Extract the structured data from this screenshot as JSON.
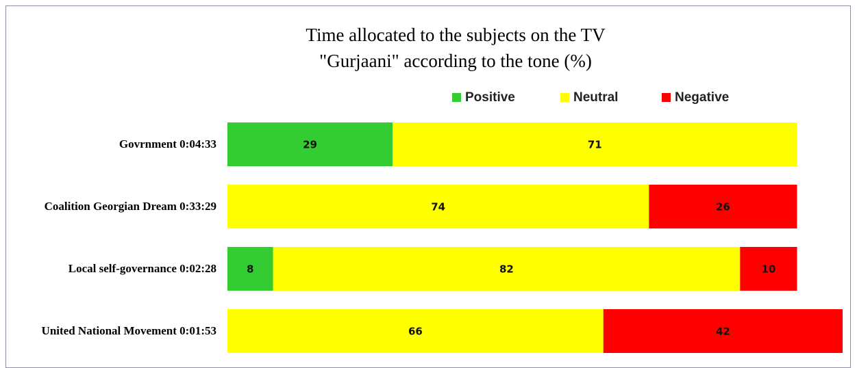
{
  "chart_data": {
    "type": "stacked-bar-horizontal",
    "title": "Time allocated to the subjects on the TV \"Gurjaani\" according to the tone (%)",
    "categories": [
      "Govrnment 0:04:33",
      "Coalition Georgian Dream 0:33:29",
      "Local self-governance 0:02:28",
      "United National Movement 0:01:53"
    ],
    "series": [
      {
        "name": "Positive",
        "color": "#33cc33",
        "values": [
          29,
          null,
          8,
          null
        ]
      },
      {
        "name": "Neutral",
        "color": "#ffff00",
        "values": [
          71,
          74,
          82,
          66
        ]
      },
      {
        "name": "Negative",
        "color": "#ff0000",
        "values": [
          null,
          26,
          10,
          42
        ]
      }
    ],
    "xlim": [
      0,
      108
    ]
  }
}
